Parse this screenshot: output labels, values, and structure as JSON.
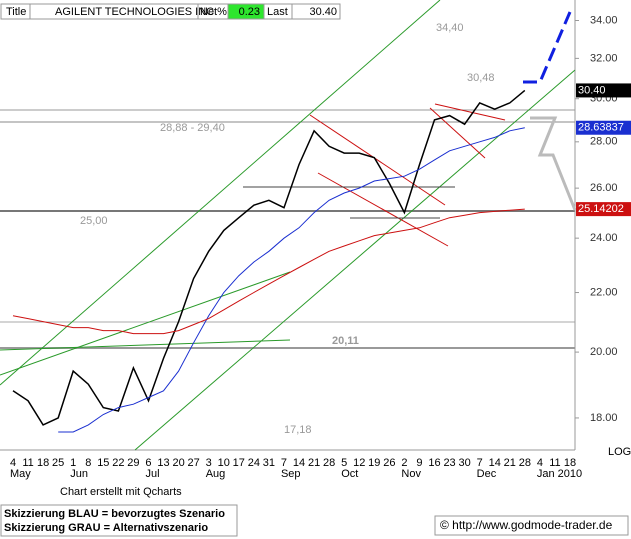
{
  "header": {
    "title_label": "Title",
    "name": "AGILENT TECHNOLOGIES INC",
    "net_label": "Net%",
    "net_value": "0.23",
    "last_label": "Last",
    "last_value": "30.40"
  },
  "chart_data": {
    "type": "line",
    "scale": "log",
    "scale_label": "LOG",
    "categories": [
      "4",
      "11",
      "18",
      "25",
      "1",
      "8",
      "15",
      "22",
      "29",
      "6",
      "13",
      "20",
      "27",
      "3",
      "10",
      "17",
      "24",
      "31",
      "7",
      "14",
      "21",
      "28",
      "5",
      "12",
      "19",
      "26",
      "2",
      "9",
      "16",
      "23",
      "30",
      "7",
      "14",
      "21",
      "28",
      "4",
      "11",
      "18"
    ],
    "months": [
      "May",
      null,
      null,
      null,
      "Jun",
      null,
      null,
      null,
      null,
      "Jul",
      null,
      null,
      null,
      "Aug",
      null,
      null,
      null,
      null,
      "Sep",
      null,
      null,
      null,
      "Oct",
      null,
      null,
      null,
      "Nov",
      null,
      null,
      null,
      null,
      "Dec",
      null,
      null,
      null,
      "Jan 2010",
      null,
      null
    ],
    "series": [
      {
        "name": "Price",
        "color": "#000000",
        "last_label": "30.40",
        "values": [
          18.8,
          18.5,
          17.8,
          18.0,
          19.4,
          19.0,
          18.3,
          18.2,
          19.5,
          18.5,
          19.8,
          21.0,
          22.5,
          23.5,
          24.3,
          24.8,
          25.3,
          25.5,
          25.2,
          27.0,
          28.5,
          27.8,
          27.5,
          27.5,
          27.3,
          26.2,
          25.0,
          27.0,
          29.0,
          29.2,
          28.8,
          29.8,
          29.5,
          29.8,
          30.4,
          null,
          null,
          null
        ]
      },
      {
        "name": "MA blue",
        "color": "#1a2fd0",
        "last_label": "28.63837",
        "values": [
          null,
          null,
          null,
          17.6,
          17.6,
          17.8,
          18.1,
          18.3,
          18.4,
          18.6,
          18.8,
          19.4,
          20.3,
          21.2,
          22.0,
          22.6,
          23.1,
          23.5,
          24.0,
          24.4,
          25.0,
          25.5,
          25.8,
          26.0,
          26.3,
          26.4,
          26.5,
          26.8,
          27.2,
          27.6,
          27.8,
          28.0,
          28.2,
          28.5,
          28.63837,
          null,
          null,
          null
        ]
      },
      {
        "name": "MA red",
        "color": "#cc1010",
        "last_label": "25.14202",
        "values": [
          21.2,
          21.1,
          21.0,
          20.9,
          20.8,
          20.8,
          20.7,
          20.7,
          20.6,
          20.6,
          20.6,
          20.7,
          20.9,
          21.1,
          21.4,
          21.7,
          22.0,
          22.3,
          22.6,
          22.9,
          23.2,
          23.5,
          23.7,
          23.9,
          24.1,
          24.2,
          24.3,
          24.4,
          24.6,
          24.8,
          24.9,
          25.0,
          25.05,
          25.1,
          25.14202,
          null,
          null,
          null
        ]
      }
    ],
    "ylim": [
      17.1,
      34.3
    ],
    "yticks": [
      {
        "value": 18,
        "label": "18.00"
      },
      {
        "value": 20,
        "label": "20.00"
      },
      {
        "value": 22,
        "label": "22.00"
      },
      {
        "value": 24,
        "label": "24.00"
      },
      {
        "value": 26,
        "label": "26.00"
      },
      {
        "value": 28,
        "label": "28.00"
      },
      {
        "value": 30,
        "label": "30.00"
      },
      {
        "value": 32,
        "label": "32.00"
      },
      {
        "value": 34,
        "label": "34.00"
      }
    ],
    "annotations": [
      "34,40",
      "30,48",
      "28,88 - 29,40",
      "25,00",
      "20,11",
      "17,18"
    ]
  },
  "footer": {
    "credit": "Chart erstellt mit Qcharts",
    "note_blue": "Skizzierung BLAU = bevorzugtes Szenario",
    "note_gray": "Skizzierung GRAU = Alternativszenario",
    "site": "© http://www.godmode-trader.de"
  }
}
